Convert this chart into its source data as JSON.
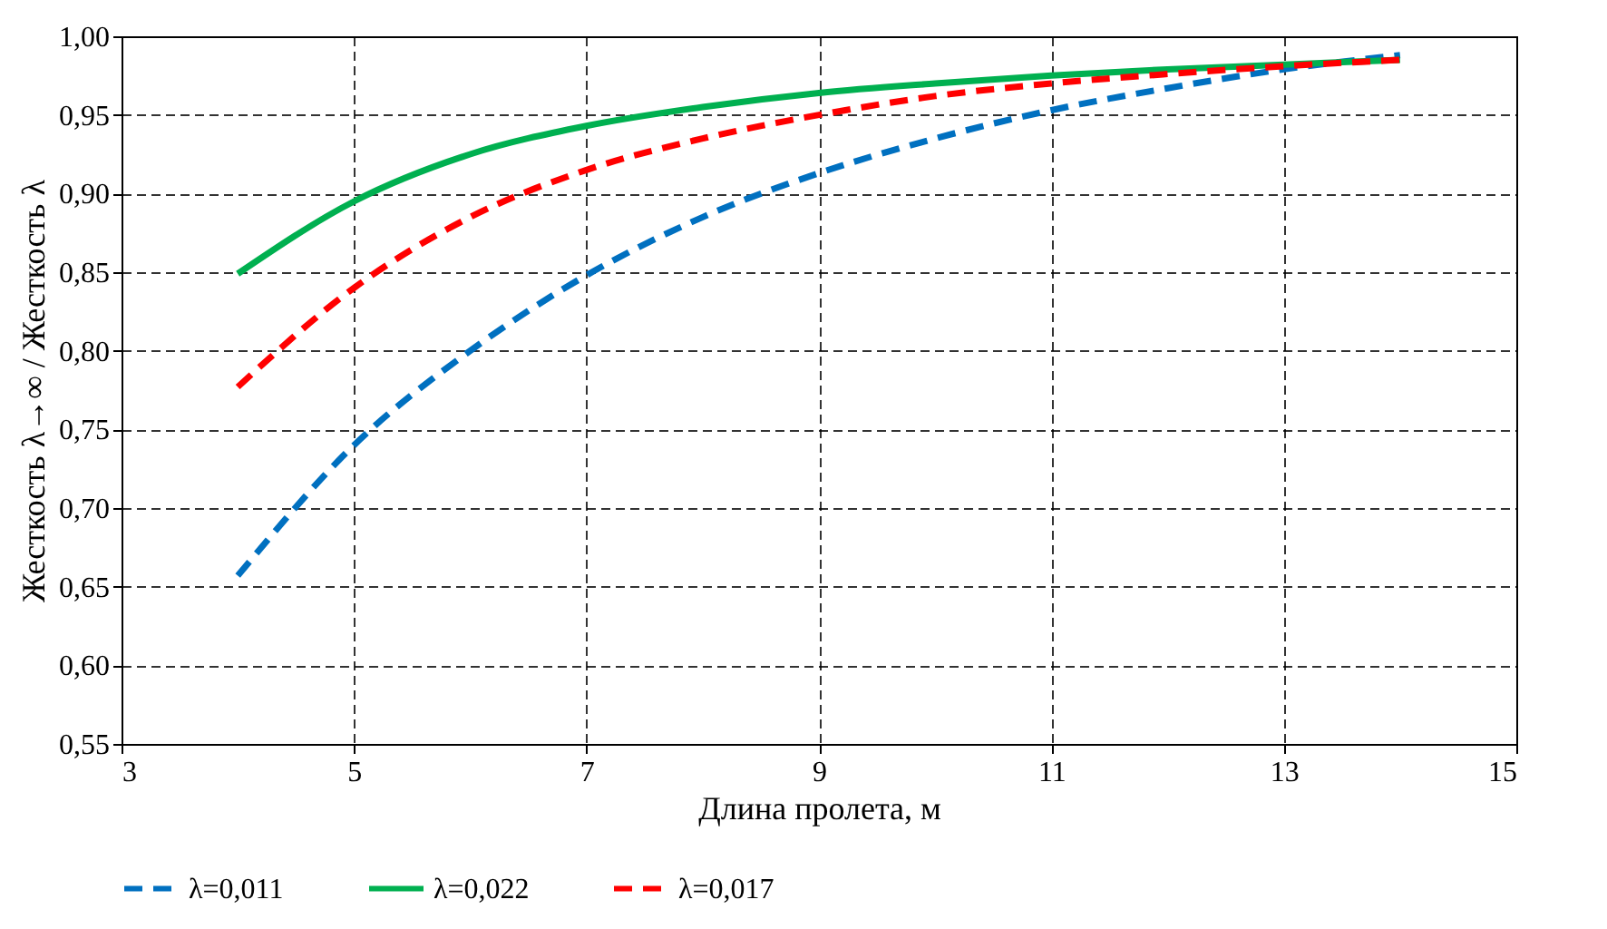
{
  "chart_data": {
    "type": "line",
    "xlabel": "Длина пролета, м",
    "ylabel": "Жесткость λ→∞ / Жесткость λ",
    "x": [
      4,
      5,
      6,
      7,
      8,
      9,
      10,
      11,
      12,
      13,
      14
    ],
    "series": [
      {
        "name": "λ=0,011",
        "color": "#0070c0",
        "line_style": "dashed",
        "values": [
          0.657,
          0.74,
          0.8,
          0.848,
          0.885,
          0.913,
          0.935,
          0.953,
          0.967,
          0.979,
          0.988
        ]
      },
      {
        "name": "λ=0,022",
        "color": "#00b050",
        "line_style": "solid",
        "values": [
          0.849,
          0.895,
          0.925,
          0.943,
          0.955,
          0.964,
          0.97,
          0.975,
          0.979,
          0.982,
          0.985
        ]
      },
      {
        "name": "λ=0,017",
        "color": "#ff0000",
        "line_style": "dashed",
        "values": [
          0.777,
          0.84,
          0.885,
          0.915,
          0.935,
          0.95,
          0.962,
          0.97,
          0.976,
          0.981,
          0.985
        ]
      }
    ],
    "xlim": [
      3,
      15
    ],
    "xticks": [
      3,
      5,
      7,
      9,
      11,
      13,
      15
    ],
    "ylim": [
      0.55,
      1.0
    ],
    "yticks": [
      {
        "value": 0.55,
        "label": "0,55"
      },
      {
        "value": 0.6,
        "label": "0,60"
      },
      {
        "value": 0.65,
        "label": "0,65"
      },
      {
        "value": 0.7,
        "label": "0,70"
      },
      {
        "value": 0.75,
        "label": "0,75"
      },
      {
        "value": 0.8,
        "label": "0,80"
      },
      {
        "value": 0.85,
        "label": "0,85"
      },
      {
        "value": 0.9,
        "label": "0,90"
      },
      {
        "value": 0.95,
        "label": "0,95"
      },
      {
        "value": 1.0,
        "label": "1,00"
      }
    ],
    "grid": true,
    "legend": "bottom",
    "marker": "none"
  }
}
